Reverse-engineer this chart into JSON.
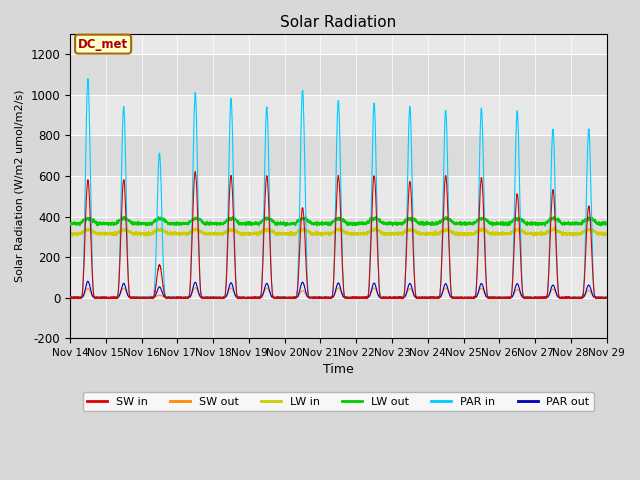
{
  "title": "Solar Radiation",
  "ylabel": "Solar Radiation (W/m2 umol/m2/s)",
  "xlabel": "Time",
  "ylim": [
    -200,
    1300
  ],
  "yticks": [
    -200,
    0,
    200,
    400,
    600,
    800,
    1000,
    1200
  ],
  "num_days": 15,
  "xtick_labels": [
    "Nov 14",
    "Nov 15",
    "Nov 16",
    "Nov 17",
    "Nov 18",
    "Nov 19",
    "Nov 20",
    "Nov 21",
    "Nov 22",
    "Nov 23",
    "Nov 24",
    "Nov 25",
    "Nov 26",
    "Nov 27",
    "Nov 28",
    "Nov 29"
  ],
  "bg_color": "#d8d8d8",
  "plot_bg_color": "#e8e8e8",
  "legend_labels": [
    "SW in",
    "SW out",
    "LW in",
    "LW out",
    "PAR in",
    "PAR out"
  ],
  "legend_colors": [
    "#dd0000",
    "#ff8800",
    "#cccc00",
    "#00cc00",
    "#00ccff",
    "#0000bb"
  ],
  "annotation_text": "DC_met",
  "annotation_color": "#aa0000",
  "annotation_bg": "#ffffcc",
  "annotation_border": "#aa6600",
  "sw_peaks": [
    580,
    580,
    160,
    620,
    600,
    600,
    440,
    600,
    600,
    570,
    600,
    590,
    510,
    530,
    450
  ],
  "par_peaks": [
    1080,
    940,
    710,
    1010,
    980,
    940,
    1020,
    970,
    960,
    940,
    920,
    930,
    920,
    830,
    830
  ],
  "lw_in_base": 315,
  "lw_out_base": 365,
  "par_out_scale": 0.075,
  "sw_out_scale": 0.08
}
